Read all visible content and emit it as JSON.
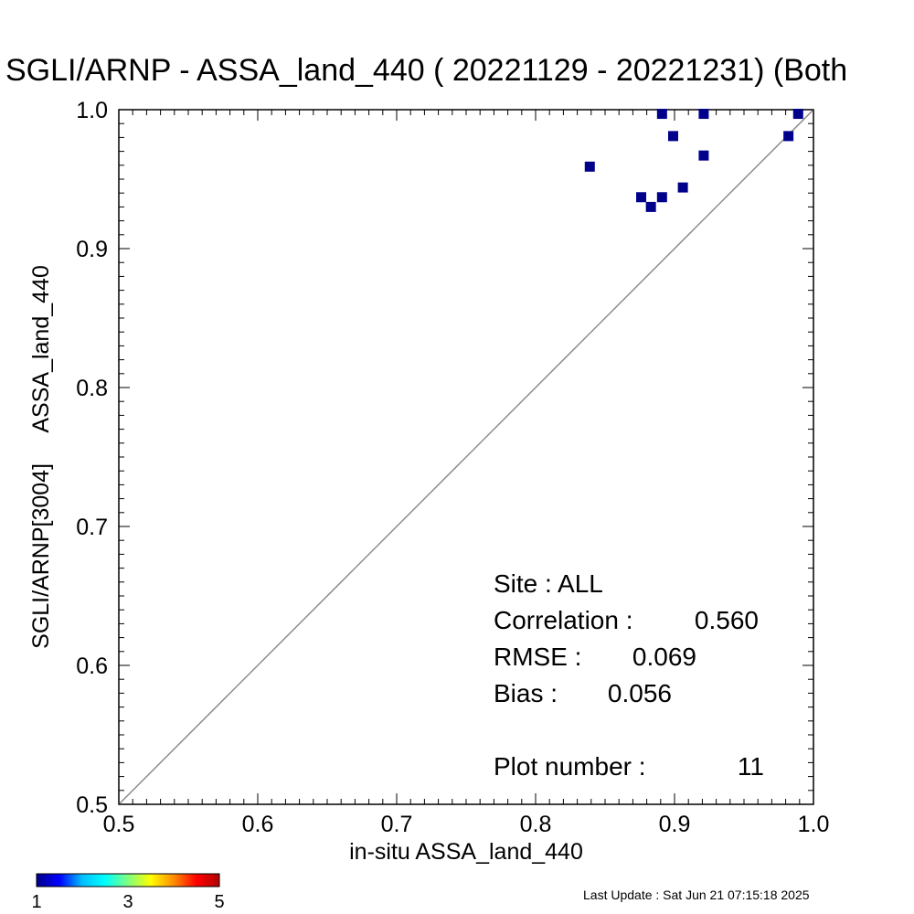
{
  "chart_data": {
    "type": "scatter",
    "title": "SGLI/ARNP - ASSA_land_440 ( 20221129 - 20221231) (Both",
    "xlabel": "in-situ ASSA_land_440",
    "ylabel": "SGLI/ARNP[3004]     ASSA_land_440",
    "xlim": [
      0.5,
      1.0
    ],
    "ylim": [
      0.5,
      1.0
    ],
    "xticks": [
      "0.5",
      "0.6",
      "0.7",
      "0.8",
      "0.9",
      "1.0"
    ],
    "yticks": [
      "0.5",
      "0.6",
      "0.7",
      "0.8",
      "0.9",
      "1.0"
    ],
    "one_to_one_line": true,
    "marker_color": "#00008b",
    "points": [
      {
        "x": 0.839,
        "y": 0.959
      },
      {
        "x": 0.876,
        "y": 0.937
      },
      {
        "x": 0.883,
        "y": 0.93
      },
      {
        "x": 0.891,
        "y": 0.937
      },
      {
        "x": 0.891,
        "y": 0.997
      },
      {
        "x": 0.899,
        "y": 0.981
      },
      {
        "x": 0.906,
        "y": 0.944
      },
      {
        "x": 0.921,
        "y": 0.997
      },
      {
        "x": 0.921,
        "y": 0.967
      },
      {
        "x": 0.982,
        "y": 0.981
      },
      {
        "x": 0.989,
        "y": 0.997
      }
    ],
    "stats": {
      "site": "Site : ALL",
      "correlation_label": "Correlation :",
      "correlation_value": "0.560",
      "rmse_label": "RMSE :",
      "rmse_value": "0.069",
      "bias_label": "Bias :",
      "bias_value": "0.056",
      "plot_number_label": "Plot number :",
      "plot_number_value": "11"
    },
    "colorbar": {
      "ticks": [
        "1",
        "3",
        "5"
      ],
      "colors": [
        "#00008b",
        "#0000ff",
        "#00bfff",
        "#00ffff",
        "#7fff7f",
        "#ffff00",
        "#ff8c00",
        "#ff0000",
        "#b00000"
      ]
    }
  },
  "footer": {
    "last_update": "Last Update : Sat Jun 21 07:15:18 2025"
  }
}
